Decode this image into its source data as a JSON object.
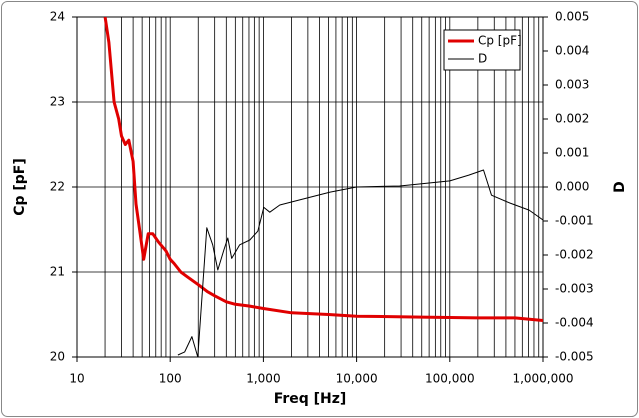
{
  "chart_data": {
    "type": "line",
    "x_label": "Freq [Hz]",
    "y_label": "Cp [pF]",
    "y2_label": "D",
    "xscale": "log",
    "xlim": [
      10,
      1000000
    ],
    "xticks": [
      10,
      100,
      {
        "value": 1000,
        "label": "1,000"
      },
      {
        "value": 10000,
        "label": "10,000"
      },
      {
        "value": 100000,
        "label": "100,000"
      },
      {
        "value": 1000000,
        "label": "1,000,000"
      }
    ],
    "ylim": [
      20,
      24
    ],
    "yticks": [
      20,
      21,
      22,
      23,
      24
    ],
    "y2lim": [
      -0.005,
      0.005
    ],
    "y2ticks": [
      0.005,
      0.004,
      0.003,
      0.002,
      0.001,
      {
        "value": 0,
        "label": "0.000"
      },
      -0.001,
      -0.002,
      -0.003,
      -0.004,
      -0.005
    ],
    "grid": true,
    "minor_grid": true,
    "legend": "upper right",
    "series": [
      {
        "name": "Cp [pF]",
        "color": "#e00000",
        "x": [
          20,
          22,
          25,
          28,
          30,
          33,
          36,
          40,
          43,
          47,
          52,
          58,
          65,
          75,
          90,
          100,
          110,
          130,
          150,
          200,
          250,
          300,
          400,
          500,
          700,
          1000,
          2000,
          5000,
          10000,
          50000,
          200000,
          500000,
          1000000
        ],
        "values": [
          24.0,
          23.7,
          23.0,
          22.8,
          22.6,
          22.5,
          22.55,
          22.3,
          21.8,
          21.5,
          21.15,
          21.45,
          21.45,
          21.35,
          21.25,
          21.15,
          21.1,
          21.0,
          20.95,
          20.85,
          20.77,
          20.72,
          20.65,
          20.62,
          20.6,
          20.57,
          20.52,
          20.5,
          20.48,
          20.47,
          20.46,
          20.46,
          20.43
        ]
      },
      {
        "name": "D",
        "color": "#000000",
        "axis": "y2",
        "x": [
          121,
          143,
          171,
          198,
          247,
          286,
          324,
          377,
          415,
          457,
          557,
          715,
          870,
          1010,
          1170,
          1500,
          2450,
          5200,
          10000,
          29000,
          100000,
          160000,
          230000,
          280000,
          440000,
          710000,
          1000000
        ],
        "values": [
          -0.00494,
          -0.00485,
          -0.0044,
          -0.005,
          -0.0012,
          -0.0017,
          -0.00244,
          -0.00185,
          -0.0015,
          -0.0021,
          -0.0017,
          -0.00156,
          -0.0013,
          -0.0006,
          -0.00074,
          -0.00053,
          -0.00038,
          -0.00015,
          0,
          3e-05,
          0.00018,
          0.00035,
          0.0005,
          -0.00024,
          -0.00047,
          -0.00068,
          -0.00097
        ]
      }
    ]
  }
}
